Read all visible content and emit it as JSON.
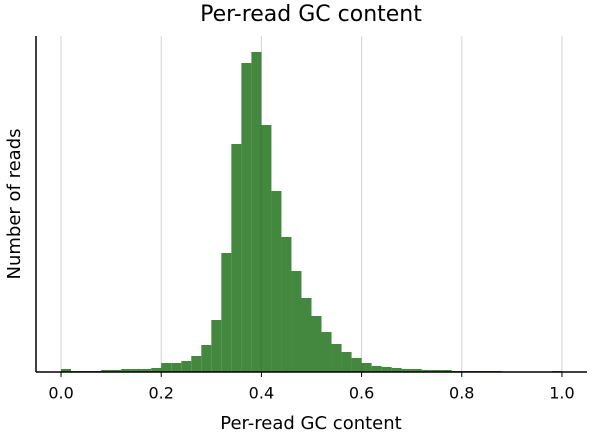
{
  "chart_data": {
    "type": "histogram",
    "title": "Per-read GC content",
    "xlabel": "Per-read GC content",
    "ylabel": "Number of reads",
    "bins": [
      0,
      0.02,
      0.04,
      0.06,
      0.08,
      0.1,
      0.12,
      0.14,
      0.16,
      0.18,
      0.2,
      0.22,
      0.24,
      0.26,
      0.28,
      0.3,
      0.32,
      0.34,
      0.36,
      0.38,
      0.4,
      0.42,
      0.44,
      0.46,
      0.48,
      0.5,
      0.52,
      0.54,
      0.56,
      0.58,
      0.6,
      0.62,
      0.64,
      0.66,
      0.68,
      0.7,
      0.72,
      0.74,
      0.76,
      0.78,
      0.8,
      0.82,
      0.84,
      0.86,
      0.88,
      0.9,
      0.92,
      0.94,
      0.96,
      0.98,
      1
    ],
    "counts": [
      3,
      1,
      1,
      1,
      2,
      2,
      3,
      3,
      3,
      4,
      9,
      9,
      11,
      16,
      27,
      52,
      119,
      228,
      309,
      320,
      247,
      181,
      135,
      101,
      74,
      56,
      40,
      28,
      20,
      14,
      9,
      6,
      5,
      4,
      3,
      3,
      2,
      2,
      2,
      1,
      1,
      1,
      1,
      1,
      0,
      0,
      0,
      0,
      0,
      1
    ],
    "color": "#44873e",
    "xlim": [
      -0.05,
      1.05
    ],
    "ylim": [
      0,
      336
    ],
    "xticks": [
      {
        "value": 0,
        "label": "0.0"
      },
      0.2,
      0.4,
      0.6,
      0.8,
      {
        "value": 1,
        "label": "1.0"
      }
    ],
    "grid": true
  }
}
